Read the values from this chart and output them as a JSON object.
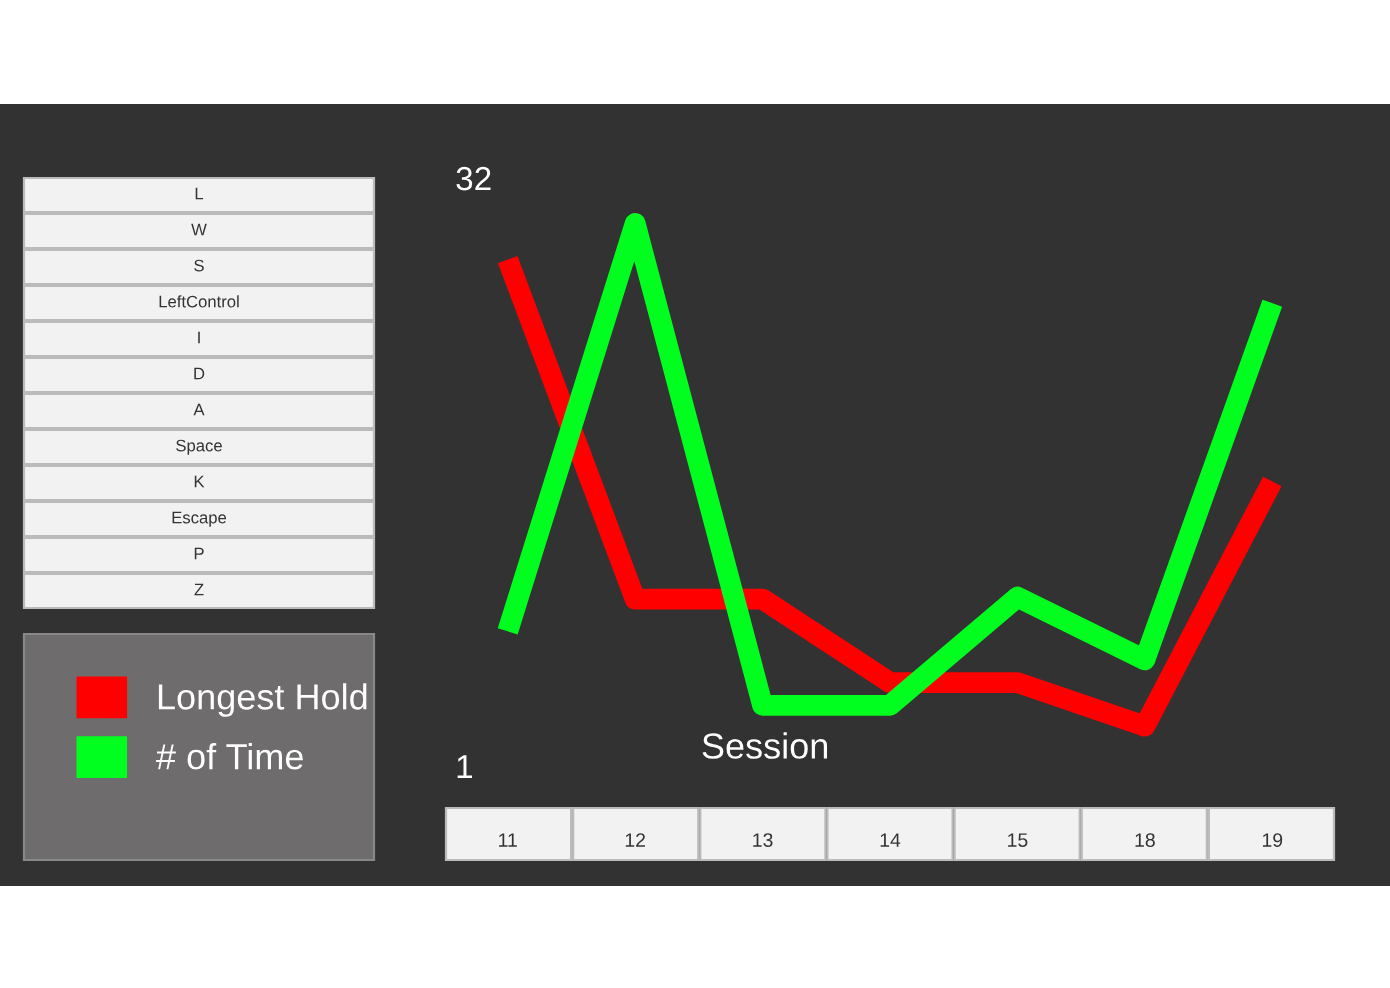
{
  "chart_data": {
    "type": "line",
    "xlabel": "Session",
    "categories": [
      "11",
      "12",
      "13",
      "14",
      "15",
      "18",
      "19"
    ],
    "series": [
      {
        "name": "Longest Hold",
        "color": "#ff0000",
        "values": [
          27.7,
          9.8,
          9.8,
          5.4,
          5.4,
          3.1,
          16.0
        ]
      },
      {
        "name": "# of Time",
        "color": "#00ff1e",
        "values": [
          8.1,
          29.6,
          4.2,
          4.2,
          9.9,
          6.6,
          25.4
        ]
      }
    ],
    "ylim": [
      1,
      32
    ],
    "yticks": [
      32,
      1
    ],
    "grid": false,
    "legend": "bottom left",
    "marker": "none",
    "line_style": "solid",
    "annotations": [
      "L",
      "W",
      "S",
      "LeftControl",
      "I",
      "D",
      "A",
      "Space",
      "K",
      "Escape",
      "P",
      "Z"
    ]
  }
}
